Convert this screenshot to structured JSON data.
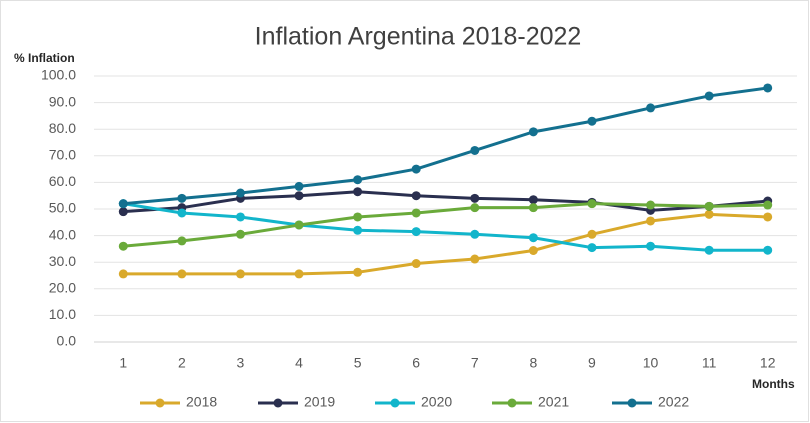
{
  "chart_data": {
    "type": "line",
    "title": "Inflation Argentina 2018-2022",
    "y_label": "% Inflation",
    "x_label": "Months",
    "x": [
      1,
      2,
      3,
      4,
      5,
      6,
      7,
      8,
      9,
      10,
      11,
      12
    ],
    "xlim": [
      0.5,
      12.5
    ],
    "xticks": [
      1,
      2,
      3,
      4,
      5,
      6,
      7,
      8,
      9,
      10,
      11,
      12
    ],
    "ylim": [
      0,
      100
    ],
    "yticks": [
      {
        "value": 0,
        "label": "0.0"
      },
      {
        "value": 10,
        "label": "10.0"
      },
      {
        "value": 20,
        "label": "20.0"
      },
      {
        "value": 30,
        "label": "30.0"
      },
      {
        "value": 40,
        "label": "40.0"
      },
      {
        "value": 50,
        "label": "50.0"
      },
      {
        "value": 60,
        "label": "60.0"
      },
      {
        "value": 70,
        "label": "70.0"
      },
      {
        "value": 80,
        "label": "80.0"
      },
      {
        "value": 90,
        "label": "90.0"
      },
      {
        "value": 100,
        "label": "100.0"
      }
    ],
    "grid": true,
    "legend": "bottom",
    "series": [
      {
        "name": "2018",
        "color": "#d9a92b",
        "values": [
          25.6,
          25.6,
          25.6,
          25.6,
          26.2,
          29.5,
          31.2,
          34.4,
          40.5,
          45.5,
          48,
          47
        ]
      },
      {
        "name": "2019",
        "color": "#2a2f4f",
        "values": [
          49,
          50.5,
          54,
          55,
          56.5,
          55,
          54,
          53.5,
          52.5,
          49.5,
          51,
          53
        ]
      },
      {
        "name": "2020",
        "color": "#12b5cb",
        "values": [
          52,
          48.5,
          47,
          44,
          42,
          41.5,
          40.5,
          39.2,
          35.5,
          36,
          34.5,
          34.5
        ]
      },
      {
        "name": "2021",
        "color": "#6aaa3a",
        "values": [
          36,
          38,
          40.5,
          44,
          47,
          48.5,
          50.5,
          50.5,
          52,
          51.5,
          51,
          51.5
        ]
      },
      {
        "name": "2022",
        "color": "#13708f",
        "values": [
          52,
          54,
          56,
          58.5,
          61,
          65,
          72,
          79,
          83,
          88,
          92.5,
          95.5
        ]
      }
    ]
  }
}
